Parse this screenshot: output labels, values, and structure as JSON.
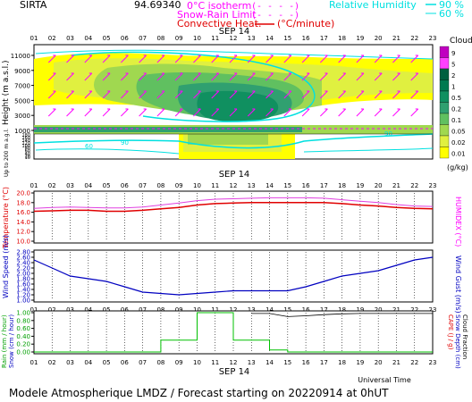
{
  "header": {
    "station": "SIRTA",
    "value": "94.69340",
    "legend_isotherm": "0°C isotherm",
    "legend_isotherm_sym": "(- - - -)",
    "legend_snow": "Snow-Rain Limit",
    "legend_snow_sym": "(- - - -)",
    "legend_conv": "Convective Heat.",
    "legend_conv_sym": "(°C/minute)",
    "legend_rh": "Relative Humidity",
    "legend_rh_vals": [
      "90 %",
      "60 %"
    ]
  },
  "date_label": "SEP 14",
  "xlabel": "Universal Time",
  "footer": "Modele Atmospherique LMDZ / Forecast starting on 20220914 at 0hUT",
  "hours": [
    "01",
    "02",
    "03",
    "04",
    "05",
    "06",
    "07",
    "08",
    "09",
    "10",
    "11",
    "12",
    "13",
    "14",
    "15",
    "16",
    "17",
    "18",
    "19",
    "20",
    "21",
    "22",
    "23"
  ],
  "colors": {
    "temp": "#e00000",
    "humidex": "#e040e0",
    "wind": "#0000c0",
    "rain": "#00c000",
    "snow": "#0000ff",
    "rh": "#00e0e0",
    "label_red": "#e00000",
    "label_magenta": "#ff00ff",
    "label_green": "#00a000",
    "label_blue": "#0000c0"
  },
  "chart_data": [
    {
      "type": "heatmap",
      "title": "Clouds",
      "ylabel": "Height (m a.s.l.)",
      "ylabel2": "Up to 200 m a.g.l.",
      "yticks_upper": [
        1000,
        3000,
        5000,
        7000,
        9000,
        11000
      ],
      "yticks_lower": [
        10,
        20,
        40,
        60,
        80,
        100,
        120,
        140,
        160,
        180
      ],
      "colorbar": {
        "label": "(g/kg)",
        "levels": [
          "9",
          "5",
          "2",
          "1",
          "0.5",
          "0.2",
          "0.1",
          "0.05",
          "0.02",
          "0.01"
        ],
        "colors": [
          "#c000c0",
          "#ff40ff",
          "#006040",
          "#007a50",
          "#109060",
          "#30a070",
          "#60c060",
          "#a0d850",
          "#e0f040",
          "#ffff00"
        ]
      },
      "rh_contour_labels": [
        "60",
        "90",
        "90"
      ]
    },
    {
      "type": "line",
      "ylabel": "Temperature (°C)",
      "ylabel2": "HUMIDEX (°C)",
      "yticks": [
        10.0,
        12.0,
        14.0,
        16.0,
        18.0,
        20.0
      ],
      "ylim": [
        10,
        20
      ],
      "series": [
        {
          "name": "Temperature",
          "values": [
            16.2,
            16.3,
            16.4,
            16.4,
            16.2,
            16.2,
            16.4,
            16.7,
            17.0,
            17.5,
            17.8,
            17.9,
            18.0,
            18.0,
            18.0,
            18.0,
            18.0,
            17.8,
            17.5,
            17.3,
            17.0,
            16.8,
            16.7
          ]
        },
        {
          "name": "HUMIDEX",
          "values": [
            16.8,
            17.0,
            17.1,
            17.0,
            16.9,
            16.9,
            17.1,
            17.5,
            17.9,
            18.4,
            18.7,
            18.8,
            18.9,
            19.0,
            19.0,
            19.0,
            18.9,
            18.6,
            18.3,
            18.0,
            17.6,
            17.3,
            17.2
          ]
        }
      ]
    },
    {
      "type": "line",
      "ylabel": "Wind Speed (m/s)",
      "ylabel2": "Wind Gust (m/s)",
      "yticks": [
        1.0,
        1.2,
        1.4,
        1.6,
        1.8,
        2.0,
        2.2,
        2.4,
        2.6,
        2.8
      ],
      "ylim": [
        1.0,
        2.8
      ],
      "series": [
        {
          "name": "Wind Speed",
          "values": [
            2.5,
            2.2,
            1.9,
            1.8,
            1.7,
            1.5,
            1.3,
            1.25,
            1.2,
            1.25,
            1.3,
            1.35,
            1.35,
            1.35,
            1.35,
            1.5,
            1.7,
            1.9,
            2.0,
            2.1,
            2.3,
            2.5,
            2.6
          ]
        }
      ]
    },
    {
      "type": "bar",
      "ylabel": "Rain (mm / hour)",
      "ylabel_b": "Snow (cm / hour)",
      "ylabel2": "CAPE (J / g)",
      "ylabel2_b": "Snow Depth (cm)",
      "ylabel2_c": "Cloud Fraction",
      "yticks": [
        0.0,
        0.2,
        0.4,
        0.6,
        0.8,
        1.0
      ],
      "ylim": [
        0,
        1
      ],
      "series": [
        {
          "name": "Rain",
          "values": [
            0,
            0,
            0,
            0,
            0,
            0,
            0,
            0.3,
            0.3,
            1.0,
            1.0,
            0.3,
            0.3,
            0.05,
            0,
            0,
            0,
            0,
            0,
            0,
            0,
            0,
            0
          ]
        },
        {
          "name": "Cloud Fraction",
          "values": [
            0,
            0,
            0,
            0,
            0,
            0,
            0,
            0,
            0,
            0,
            0,
            0,
            0.98,
            0.98,
            0.9,
            0.92,
            0.95,
            0.97,
            0.98,
            0.98,
            0.98,
            0.98,
            0.98
          ]
        }
      ]
    }
  ]
}
